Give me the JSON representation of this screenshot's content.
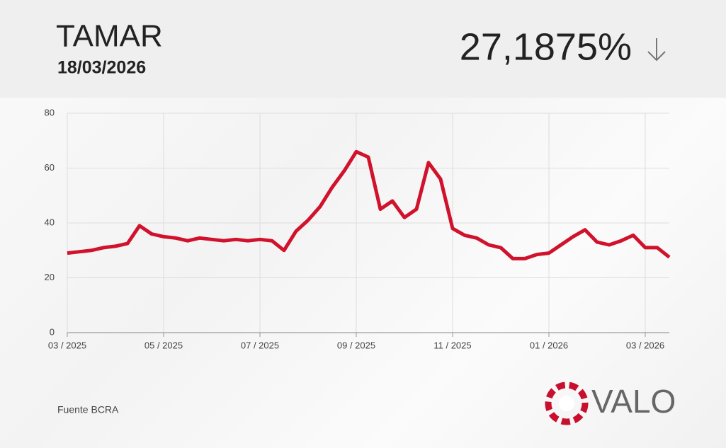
{
  "header": {
    "title": "TAMAR",
    "date": "18/03/2026",
    "value": "27,1875%"
  },
  "footer": {
    "source": "Fuente BCRA",
    "brand": "VALO"
  },
  "chart_data": {
    "type": "line",
    "categories": [
      "03 / 2025",
      null,
      null,
      null,
      null,
      null,
      null,
      null,
      "05 / 2025",
      null,
      null,
      null,
      null,
      null,
      null,
      null,
      "07 / 2025",
      null,
      null,
      null,
      null,
      null,
      null,
      null,
      "09 / 2025",
      null,
      null,
      null,
      null,
      null,
      null,
      null,
      "11 / 2025",
      null,
      null,
      null,
      null,
      null,
      null,
      null,
      "01 / 2026",
      null,
      null,
      null,
      null,
      null,
      null,
      null,
      "03 / 2026",
      null,
      null
    ],
    "values": [
      29,
      29.5,
      30,
      31,
      31.5,
      32.5,
      39,
      36,
      35,
      34.5,
      33.5,
      34.5,
      34,
      33.5,
      34,
      33.5,
      34,
      33.5,
      30,
      37,
      41,
      46,
      53,
      59,
      66,
      64,
      45,
      48,
      42,
      45,
      62,
      56,
      38,
      35.5,
      34.5,
      32,
      31,
      27,
      27,
      28.5,
      29,
      32,
      35,
      37.5,
      33,
      32,
      33.5,
      35.5,
      31,
      31,
      27.5
    ],
    "color": "#d0122c",
    "ylim": [
      0,
      80
    ],
    "yticks": [
      0,
      20,
      40,
      60,
      80
    ],
    "grid": true
  }
}
